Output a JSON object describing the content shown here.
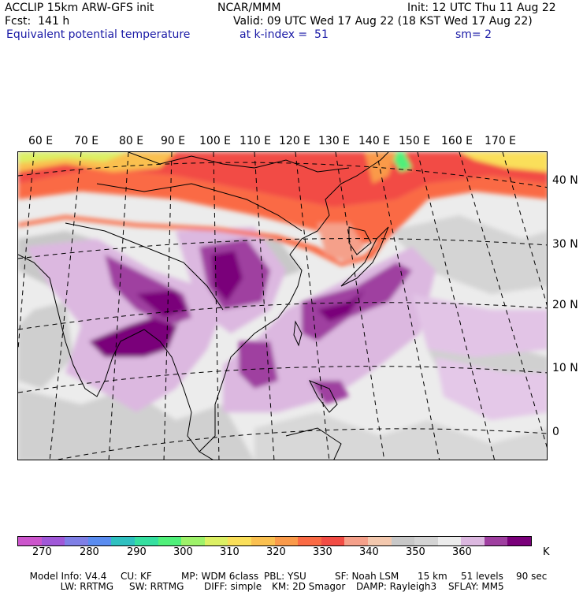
{
  "header": {
    "model": "ACCLIP 15km ARW-GFS init",
    "fcst": "Fcst:  141 h",
    "field": "Equivalent potential temperature",
    "center": "NCAR/MMM",
    "init": "Init: 12 UTC Thu 11 Aug 22",
    "valid": "Valid: 09 UTC Wed 17 Aug 22 (18 KST Wed 17 Aug 22)",
    "level": "at k-index =  51",
    "smooth": "sm= 2"
  },
  "map": {
    "lon_labels": [
      "60 E",
      "70 E",
      "80 E",
      "90 E",
      "100 E",
      "110 E",
      "120 E",
      "130 E",
      "140 E",
      "150 E",
      "160 E",
      "170 E"
    ],
    "lat_labels": [
      "40 N",
      "30 N",
      "20 N",
      "10 N",
      "0"
    ]
  },
  "colorbar": {
    "colors": [
      "#cc55cc",
      "#a058d8",
      "#7f7fe6",
      "#5a8cf0",
      "#2fc0c0",
      "#35dfa0",
      "#50f07a",
      "#9ef26a",
      "#dcf064",
      "#fadf5a",
      "#fac050",
      "#fa9a4a",
      "#fa6a44",
      "#f24c44",
      "#f5a08a",
      "#f3c8ae",
      "#c8c8c8",
      "#d4d4d4",
      "#ececec",
      "#dcb8e0",
      "#9f3fa0",
      "#7a007a"
    ],
    "ticks": [
      "270",
      "280",
      "290",
      "300",
      "310",
      "320",
      "330",
      "340",
      "350",
      "360"
    ],
    "unit": "K"
  },
  "model_info": {
    "line1": [
      "Model Info: V4.4",
      "CU: KF",
      "MP: WDM 6class",
      "PBL: YSU",
      "SF: Noah LSM",
      "15 km",
      "51 levels",
      "90 sec"
    ],
    "line2": [
      "LW: RRTMG",
      "SW: RRTMG",
      "DIFF: simple",
      "KM: 2D Smagor",
      "DAMP: Rayleigh3",
      "SFLAY: MM5"
    ]
  }
}
